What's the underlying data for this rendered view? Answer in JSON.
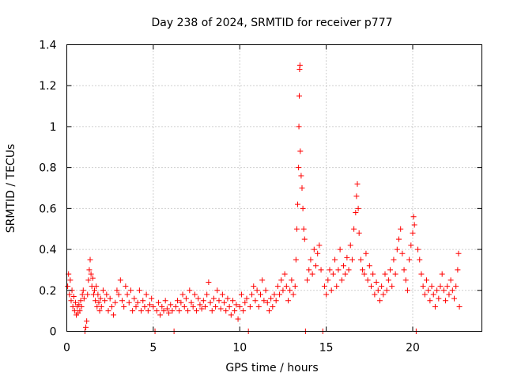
{
  "chart_data": {
    "type": "scatter",
    "title": "Day 238 of 2024, SRMTID for receiver p777",
    "xlabel": "GPS time / hours",
    "ylabel": "SRMTID / TECUs",
    "xlim": [
      0,
      24
    ],
    "ylim": [
      0,
      1.4
    ],
    "xticks": [
      0,
      5,
      10,
      15,
      20
    ],
    "xtick_labels": [
      "0",
      "5",
      "10",
      "15",
      "20"
    ],
    "yticks": [
      0,
      0.2,
      0.4,
      0.6,
      0.8,
      1.0,
      1.2,
      1.4
    ],
    "ytick_labels": [
      "0",
      "0.2",
      "0.4",
      "0.6",
      "0.8",
      "1",
      "1.2",
      "1.4"
    ],
    "grid": true,
    "marker": "plus",
    "color": "#ff0000",
    "series": [
      {
        "name": "SRMTID",
        "points": [
          [
            0.05,
            0.22
          ],
          [
            0.1,
            0.28
          ],
          [
            0.15,
            0.18
          ],
          [
            0.2,
            0.25
          ],
          [
            0.25,
            0.15
          ],
          [
            0.3,
            0.2
          ],
          [
            0.35,
            0.12
          ],
          [
            0.4,
            0.17
          ],
          [
            0.45,
            0.1
          ],
          [
            0.5,
            0.14
          ],
          [
            0.55,
            0.08
          ],
          [
            0.6,
            0.12
          ],
          [
            0.65,
            0.09
          ],
          [
            0.7,
            0.13
          ],
          [
            0.75,
            0.1
          ],
          [
            0.8,
            0.15
          ],
          [
            0.85,
            0.12
          ],
          [
            0.9,
            0.18
          ],
          [
            0.95,
            0.2
          ],
          [
            1.0,
            0.16
          ],
          [
            1.05,
            0.0
          ],
          [
            1.1,
            0.02
          ],
          [
            1.15,
            0.05
          ],
          [
            1.2,
            0.18
          ],
          [
            1.25,
            0.25
          ],
          [
            1.3,
            0.3
          ],
          [
            1.35,
            0.35
          ],
          [
            1.4,
            0.28
          ],
          [
            1.45,
            0.22
          ],
          [
            1.5,
            0.26
          ],
          [
            1.55,
            0.18
          ],
          [
            1.6,
            0.2
          ],
          [
            1.65,
            0.15
          ],
          [
            1.7,
            0.22
          ],
          [
            1.75,
            0.12
          ],
          [
            1.8,
            0.18
          ],
          [
            1.85,
            0.14
          ],
          [
            1.9,
            0.1
          ],
          [
            1.95,
            0.16
          ],
          [
            2.0,
            0.12
          ],
          [
            2.1,
            0.2
          ],
          [
            2.2,
            0.15
          ],
          [
            2.3,
            0.18
          ],
          [
            2.4,
            0.1
          ],
          [
            2.5,
            0.16
          ],
          [
            2.6,
            0.12
          ],
          [
            2.7,
            0.08
          ],
          [
            2.8,
            0.14
          ],
          [
            2.9,
            0.2
          ],
          [
            3.0,
            0.18
          ],
          [
            3.1,
            0.25
          ],
          [
            3.2,
            0.15
          ],
          [
            3.3,
            0.12
          ],
          [
            3.4,
            0.22
          ],
          [
            3.5,
            0.18
          ],
          [
            3.6,
            0.14
          ],
          [
            3.7,
            0.2
          ],
          [
            3.8,
            0.1
          ],
          [
            3.9,
            0.16
          ],
          [
            4.0,
            0.12
          ],
          [
            4.1,
            0.14
          ],
          [
            4.2,
            0.2
          ],
          [
            4.3,
            0.1
          ],
          [
            4.4,
            0.15
          ],
          [
            4.5,
            0.12
          ],
          [
            4.6,
            0.18
          ],
          [
            4.7,
            0.1
          ],
          [
            4.8,
            0.13
          ],
          [
            4.9,
            0.16
          ],
          [
            5.0,
            0.12
          ],
          [
            5.1,
            0.0
          ],
          [
            5.2,
            0.1
          ],
          [
            5.3,
            0.14
          ],
          [
            5.4,
            0.08
          ],
          [
            5.5,
            0.12
          ],
          [
            5.6,
            0.1
          ],
          [
            5.7,
            0.15
          ],
          [
            5.8,
            0.11
          ],
          [
            5.9,
            0.09
          ],
          [
            6.0,
            0.13
          ],
          [
            6.1,
            0.1
          ],
          [
            6.2,
            0.0
          ],
          [
            6.3,
            0.12
          ],
          [
            6.4,
            0.15
          ],
          [
            6.5,
            0.1
          ],
          [
            6.6,
            0.14
          ],
          [
            6.7,
            0.18
          ],
          [
            6.8,
            0.12
          ],
          [
            6.9,
            0.16
          ],
          [
            7.0,
            0.1
          ],
          [
            7.1,
            0.2
          ],
          [
            7.2,
            0.14
          ],
          [
            7.3,
            0.12
          ],
          [
            7.4,
            0.18
          ],
          [
            7.5,
            0.1
          ],
          [
            7.6,
            0.16
          ],
          [
            7.7,
            0.13
          ],
          [
            7.8,
            0.11
          ],
          [
            7.9,
            0.15
          ],
          [
            8.0,
            0.12
          ],
          [
            8.1,
            0.18
          ],
          [
            8.2,
            0.24
          ],
          [
            8.3,
            0.14
          ],
          [
            8.4,
            0.1
          ],
          [
            8.5,
            0.16
          ],
          [
            8.6,
            0.12
          ],
          [
            8.7,
            0.2
          ],
          [
            8.8,
            0.15
          ],
          [
            8.9,
            0.11
          ],
          [
            9.0,
            0.18
          ],
          [
            9.1,
            0.14
          ],
          [
            9.2,
            0.1
          ],
          [
            9.3,
            0.16
          ],
          [
            9.4,
            0.12
          ],
          [
            9.5,
            0.08
          ],
          [
            9.6,
            0.15
          ],
          [
            9.7,
            0.1
          ],
          [
            9.8,
            0.13
          ],
          [
            9.9,
            0.06
          ],
          [
            10.0,
            0.12
          ],
          [
            10.1,
            0.18
          ],
          [
            10.2,
            0.1
          ],
          [
            10.3,
            0.14
          ],
          [
            10.4,
            0.16
          ],
          [
            10.5,
            0.0
          ],
          [
            10.6,
            0.12
          ],
          [
            10.7,
            0.18
          ],
          [
            10.8,
            0.22
          ],
          [
            10.9,
            0.15
          ],
          [
            11.0,
            0.2
          ],
          [
            11.1,
            0.12
          ],
          [
            11.2,
            0.18
          ],
          [
            11.3,
            0.25
          ],
          [
            11.4,
            0.15
          ],
          [
            11.5,
            0.2
          ],
          [
            11.6,
            0.14
          ],
          [
            11.7,
            0.1
          ],
          [
            11.8,
            0.16
          ],
          [
            11.9,
            0.12
          ],
          [
            12.0,
            0.18
          ],
          [
            12.1,
            0.15
          ],
          [
            12.2,
            0.22
          ],
          [
            12.3,
            0.18
          ],
          [
            12.4,
            0.25
          ],
          [
            12.5,
            0.2
          ],
          [
            12.6,
            0.28
          ],
          [
            12.7,
            0.22
          ],
          [
            12.8,
            0.15
          ],
          [
            12.9,
            0.2
          ],
          [
            13.0,
            0.25
          ],
          [
            13.1,
            0.18
          ],
          [
            13.2,
            0.22
          ],
          [
            13.25,
            0.35
          ],
          [
            13.3,
            0.5
          ],
          [
            13.35,
            0.62
          ],
          [
            13.4,
            0.8
          ],
          [
            13.42,
            1.0
          ],
          [
            13.44,
            1.15
          ],
          [
            13.46,
            1.28
          ],
          [
            13.48,
            1.3
          ],
          [
            13.5,
            0.88
          ],
          [
            13.55,
            0.76
          ],
          [
            13.6,
            0.7
          ],
          [
            13.65,
            0.6
          ],
          [
            13.7,
            0.5
          ],
          [
            13.75,
            0.45
          ],
          [
            13.8,
            0.0
          ],
          [
            13.9,
            0.25
          ],
          [
            14.0,
            0.3
          ],
          [
            14.1,
            0.35
          ],
          [
            14.2,
            0.28
          ],
          [
            14.3,
            0.4
          ],
          [
            14.4,
            0.32
          ],
          [
            14.5,
            0.38
          ],
          [
            14.6,
            0.42
          ],
          [
            14.7,
            0.3
          ],
          [
            14.8,
            0.0
          ],
          [
            14.9,
            0.22
          ],
          [
            15.0,
            0.18
          ],
          [
            15.1,
            0.25
          ],
          [
            15.2,
            0.3
          ],
          [
            15.3,
            0.2
          ],
          [
            15.4,
            0.28
          ],
          [
            15.5,
            0.35
          ],
          [
            15.6,
            0.22
          ],
          [
            15.7,
            0.3
          ],
          [
            15.8,
            0.4
          ],
          [
            15.9,
            0.25
          ],
          [
            16.0,
            0.32
          ],
          [
            16.1,
            0.28
          ],
          [
            16.2,
            0.36
          ],
          [
            16.3,
            0.3
          ],
          [
            16.4,
            0.42
          ],
          [
            16.5,
            0.35
          ],
          [
            16.6,
            0.5
          ],
          [
            16.7,
            0.58
          ],
          [
            16.75,
            0.66
          ],
          [
            16.8,
            0.72
          ],
          [
            16.85,
            0.6
          ],
          [
            16.9,
            0.48
          ],
          [
            17.0,
            0.35
          ],
          [
            17.1,
            0.3
          ],
          [
            17.2,
            0.28
          ],
          [
            17.3,
            0.38
          ],
          [
            17.4,
            0.25
          ],
          [
            17.5,
            0.32
          ],
          [
            17.6,
            0.22
          ],
          [
            17.7,
            0.28
          ],
          [
            17.8,
            0.18
          ],
          [
            17.9,
            0.24
          ],
          [
            18.0,
            0.2
          ],
          [
            18.1,
            0.15
          ],
          [
            18.2,
            0.22
          ],
          [
            18.3,
            0.18
          ],
          [
            18.4,
            0.28
          ],
          [
            18.5,
            0.2
          ],
          [
            18.6,
            0.25
          ],
          [
            18.7,
            0.3
          ],
          [
            18.8,
            0.22
          ],
          [
            18.9,
            0.35
          ],
          [
            19.0,
            0.28
          ],
          [
            19.1,
            0.4
          ],
          [
            19.2,
            0.45
          ],
          [
            19.3,
            0.5
          ],
          [
            19.4,
            0.38
          ],
          [
            19.5,
            0.3
          ],
          [
            19.6,
            0.25
          ],
          [
            19.7,
            0.2
          ],
          [
            19.8,
            0.35
          ],
          [
            19.9,
            0.42
          ],
          [
            20.0,
            0.48
          ],
          [
            20.05,
            0.56
          ],
          [
            20.1,
            0.52
          ],
          [
            20.2,
            0.0
          ],
          [
            20.3,
            0.4
          ],
          [
            20.4,
            0.35
          ],
          [
            20.5,
            0.28
          ],
          [
            20.6,
            0.22
          ],
          [
            20.7,
            0.18
          ],
          [
            20.8,
            0.25
          ],
          [
            20.9,
            0.2
          ],
          [
            21.0,
            0.15
          ],
          [
            21.1,
            0.22
          ],
          [
            21.2,
            0.18
          ],
          [
            21.3,
            0.12
          ],
          [
            21.4,
            0.2
          ],
          [
            21.5,
            0.16
          ],
          [
            21.6,
            0.22
          ],
          [
            21.7,
            0.28
          ],
          [
            21.8,
            0.2
          ],
          [
            21.9,
            0.15
          ],
          [
            22.0,
            0.22
          ],
          [
            22.1,
            0.18
          ],
          [
            22.2,
            0.25
          ],
          [
            22.3,
            0.2
          ],
          [
            22.4,
            0.16
          ],
          [
            22.5,
            0.22
          ],
          [
            22.6,
            0.3
          ],
          [
            22.65,
            0.38
          ],
          [
            22.7,
            0.12
          ]
        ]
      }
    ]
  }
}
